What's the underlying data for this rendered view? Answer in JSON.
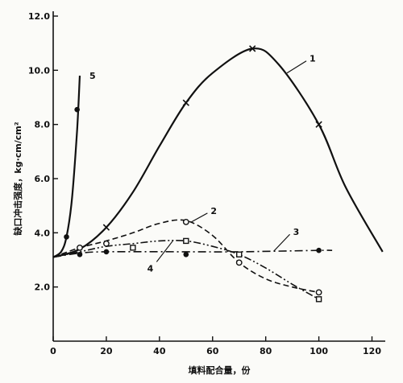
{
  "chart_data": {
    "type": "line",
    "xlabel": "填料配合量，份",
    "ylabel": "缺口冲击强度，kg·cm/cm²",
    "xlim": [
      0,
      125
    ],
    "ylim": [
      0,
      12
    ],
    "x_ticks": [
      "0",
      "20",
      "40",
      "60",
      "80",
      "100",
      "120"
    ],
    "y_ticks": [
      "2.0",
      "4.0",
      "6.0",
      "8.0",
      "10.0",
      "12.0"
    ],
    "grid": false,
    "legend": "curve labels 1–5 with leader lines",
    "series": [
      {
        "name": "1",
        "style": "solid",
        "marker": "x",
        "values": [
          [
            0,
            3.1
          ],
          [
            10,
            3.4
          ],
          [
            20,
            4.2
          ],
          [
            30,
            5.5
          ],
          [
            40,
            7.2
          ],
          [
            50,
            8.8
          ],
          [
            60,
            9.9
          ],
          [
            75,
            10.8
          ],
          [
            85,
            10.2
          ],
          [
            100,
            8.0
          ],
          [
            110,
            5.7
          ],
          [
            124,
            3.3
          ]
        ],
        "markers": [
          [
            20,
            4.2
          ],
          [
            50,
            8.8
          ],
          [
            75,
            10.8
          ],
          [
            100,
            8.0
          ]
        ]
      },
      {
        "name": "2",
        "style": "dashed",
        "marker": "o",
        "values": [
          [
            0,
            3.1
          ],
          [
            10,
            3.45
          ],
          [
            20,
            3.7
          ],
          [
            30,
            4.0
          ],
          [
            40,
            4.35
          ],
          [
            50,
            4.45
          ],
          [
            60,
            3.9
          ],
          [
            70,
            2.9
          ],
          [
            80,
            2.3
          ],
          [
            90,
            2.0
          ],
          [
            100,
            1.8
          ]
        ],
        "markers": [
          [
            10,
            3.45
          ],
          [
            20,
            3.6
          ],
          [
            50,
            4.4
          ],
          [
            70,
            2.9
          ],
          [
            100,
            1.8
          ]
        ]
      },
      {
        "name": "3",
        "style": "dash-dot",
        "marker": "filled-circle",
        "values": [
          [
            0,
            3.1
          ],
          [
            10,
            3.25
          ],
          [
            20,
            3.3
          ],
          [
            50,
            3.3
          ],
          [
            70,
            3.3
          ],
          [
            100,
            3.35
          ],
          [
            105,
            3.35
          ]
        ],
        "markers": [
          [
            10,
            3.2
          ],
          [
            20,
            3.3
          ],
          [
            50,
            3.2
          ],
          [
            100,
            3.35
          ]
        ]
      },
      {
        "name": "4",
        "style": "dash-dot-dot",
        "marker": "square",
        "values": [
          [
            0,
            3.1
          ],
          [
            10,
            3.3
          ],
          [
            20,
            3.5
          ],
          [
            30,
            3.6
          ],
          [
            40,
            3.7
          ],
          [
            50,
            3.7
          ],
          [
            60,
            3.5
          ],
          [
            70,
            3.2
          ],
          [
            80,
            2.7
          ],
          [
            90,
            2.1
          ],
          [
            100,
            1.55
          ]
        ],
        "markers": [
          [
            30,
            3.45
          ],
          [
            50,
            3.7
          ],
          [
            70,
            3.2
          ],
          [
            100,
            1.55
          ]
        ]
      },
      {
        "name": "5",
        "style": "solid",
        "marker": "filled-circle",
        "values": [
          [
            0,
            3.1
          ],
          [
            3,
            3.3
          ],
          [
            5,
            3.85
          ],
          [
            7,
            5.2
          ],
          [
            9,
            7.8
          ],
          [
            10,
            9.8
          ]
        ],
        "markers": [
          [
            5,
            3.85
          ],
          [
            9,
            8.55
          ]
        ]
      }
    ]
  }
}
